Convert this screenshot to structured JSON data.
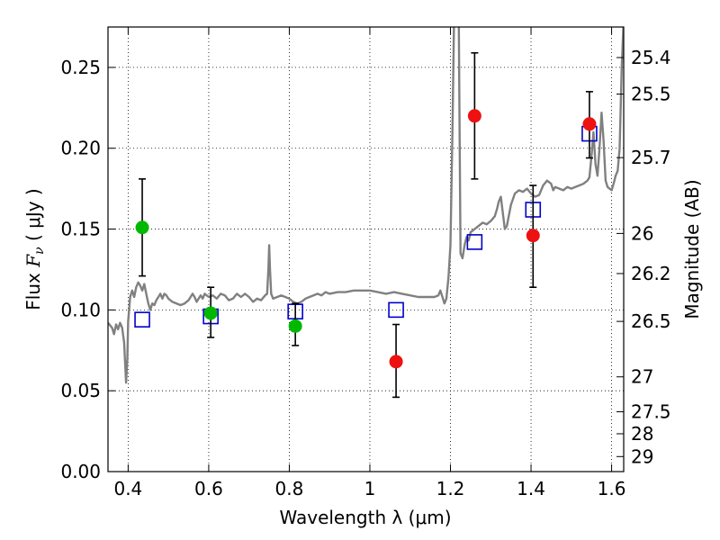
{
  "chart_data": {
    "type": "scatter",
    "title": "",
    "xlabel": "Wavelength  λ (μm)",
    "ylabel_prefix": "Flux  ",
    "ylabel_symbol": "F",
    "ylabel_subscript": "ν",
    "ylabel_suffix": "  ( μJy )",
    "y2label": "Magnitude (AB)",
    "xlim": [
      0.35,
      1.63
    ],
    "ylim": [
      0.0,
      0.275
    ],
    "grid": true,
    "grid_style": "dotted",
    "xticks": [
      0.4,
      0.6,
      0.8,
      1.0,
      1.2,
      1.4,
      1.6
    ],
    "xtick_labels": [
      "0.4",
      "0.6",
      "0.8",
      "1",
      "1.2",
      "1.4",
      "1.6"
    ],
    "yticks": [
      0.0,
      0.05,
      0.1,
      0.15,
      0.2,
      0.25
    ],
    "ytick_labels": [
      "0.00",
      "0.05",
      "0.10",
      "0.15",
      "0.20",
      "0.25"
    ],
    "y2ticks": [
      {
        "flux": 0.2561,
        "label": "25.4"
      },
      {
        "flux": 0.2335,
        "label": "25.5"
      },
      {
        "flux": 0.1942,
        "label": "25.7"
      },
      {
        "flux": 0.1473,
        "label": "26"
      },
      {
        "flux": 0.1225,
        "label": "26.2"
      },
      {
        "flux": 0.0929,
        "label": "26.5"
      },
      {
        "flux": 0.0586,
        "label": "27"
      },
      {
        "flux": 0.037,
        "label": "27.5"
      },
      {
        "flux": 0.0234,
        "label": "28"
      },
      {
        "flux": 0.0093,
        "label": "29"
      }
    ],
    "series": [
      {
        "kind": "model_sed_line",
        "color": "#808080",
        "points": [
          [
            0.35,
            0.092
          ],
          [
            0.36,
            0.089
          ],
          [
            0.365,
            0.085
          ],
          [
            0.37,
            0.091
          ],
          [
            0.375,
            0.088
          ],
          [
            0.38,
            0.092
          ],
          [
            0.385,
            0.089
          ],
          [
            0.39,
            0.08
          ],
          [
            0.395,
            0.055
          ],
          [
            0.398,
            0.07
          ],
          [
            0.4,
            0.093
          ],
          [
            0.405,
            0.108
          ],
          [
            0.41,
            0.112
          ],
          [
            0.415,
            0.108
          ],
          [
            0.42,
            0.114
          ],
          [
            0.425,
            0.117
          ],
          [
            0.43,
            0.115
          ],
          [
            0.435,
            0.112
          ],
          [
            0.44,
            0.116
          ],
          [
            0.445,
            0.11
          ],
          [
            0.45,
            0.104
          ],
          [
            0.455,
            0.1
          ],
          [
            0.46,
            0.104
          ],
          [
            0.465,
            0.103
          ],
          [
            0.47,
            0.106
          ],
          [
            0.475,
            0.108
          ],
          [
            0.48,
            0.11
          ],
          [
            0.485,
            0.107
          ],
          [
            0.49,
            0.11
          ],
          [
            0.495,
            0.109
          ],
          [
            0.5,
            0.107
          ],
          [
            0.51,
            0.105
          ],
          [
            0.52,
            0.104
          ],
          [
            0.53,
            0.103
          ],
          [
            0.54,
            0.104
          ],
          [
            0.55,
            0.106
          ],
          [
            0.56,
            0.11
          ],
          [
            0.565,
            0.108
          ],
          [
            0.57,
            0.105
          ],
          [
            0.575,
            0.107
          ],
          [
            0.58,
            0.109
          ],
          [
            0.585,
            0.107
          ],
          [
            0.59,
            0.11
          ],
          [
            0.6,
            0.108
          ],
          [
            0.61,
            0.109
          ],
          [
            0.62,
            0.107
          ],
          [
            0.63,
            0.11
          ],
          [
            0.64,
            0.109
          ],
          [
            0.65,
            0.106
          ],
          [
            0.66,
            0.107
          ],
          [
            0.67,
            0.11
          ],
          [
            0.68,
            0.108
          ],
          [
            0.69,
            0.11
          ],
          [
            0.7,
            0.108
          ],
          [
            0.71,
            0.105
          ],
          [
            0.72,
            0.107
          ],
          [
            0.73,
            0.106
          ],
          [
            0.74,
            0.109
          ],
          [
            0.745,
            0.11
          ],
          [
            0.748,
            0.125
          ],
          [
            0.75,
            0.14
          ],
          [
            0.752,
            0.125
          ],
          [
            0.755,
            0.11
          ],
          [
            0.76,
            0.107
          ],
          [
            0.77,
            0.108
          ],
          [
            0.78,
            0.109
          ],
          [
            0.79,
            0.108
          ],
          [
            0.8,
            0.107
          ],
          [
            0.81,
            0.105
          ],
          [
            0.82,
            0.104
          ],
          [
            0.83,
            0.105
          ],
          [
            0.84,
            0.107
          ],
          [
            0.85,
            0.108
          ],
          [
            0.86,
            0.109
          ],
          [
            0.87,
            0.11
          ],
          [
            0.88,
            0.109
          ],
          [
            0.89,
            0.111
          ],
          [
            0.9,
            0.11
          ],
          [
            0.92,
            0.111
          ],
          [
            0.94,
            0.111
          ],
          [
            0.96,
            0.112
          ],
          [
            0.98,
            0.112
          ],
          [
            1.0,
            0.112
          ],
          [
            1.02,
            0.111
          ],
          [
            1.04,
            0.11
          ],
          [
            1.06,
            0.111
          ],
          [
            1.08,
            0.11
          ],
          [
            1.1,
            0.109
          ],
          [
            1.12,
            0.108
          ],
          [
            1.14,
            0.108
          ],
          [
            1.16,
            0.108
          ],
          [
            1.17,
            0.109
          ],
          [
            1.175,
            0.112
          ],
          [
            1.18,
            0.108
          ],
          [
            1.185,
            0.104
          ],
          [
            1.19,
            0.107
          ],
          [
            1.195,
            0.12
          ],
          [
            1.2,
            0.14
          ],
          [
            1.205,
            0.21
          ],
          [
            1.21,
            0.3
          ],
          [
            1.22,
            0.3
          ],
          [
            1.222,
            0.23
          ],
          [
            1.225,
            0.135
          ],
          [
            1.23,
            0.132
          ],
          [
            1.235,
            0.14
          ],
          [
            1.24,
            0.145
          ],
          [
            1.245,
            0.143
          ],
          [
            1.25,
            0.148
          ],
          [
            1.26,
            0.15
          ],
          [
            1.27,
            0.152
          ],
          [
            1.28,
            0.154
          ],
          [
            1.29,
            0.153
          ],
          [
            1.3,
            0.155
          ],
          [
            1.31,
            0.158
          ],
          [
            1.315,
            0.162
          ],
          [
            1.32,
            0.167
          ],
          [
            1.325,
            0.17
          ],
          [
            1.33,
            0.16
          ],
          [
            1.335,
            0.15
          ],
          [
            1.34,
            0.152
          ],
          [
            1.35,
            0.165
          ],
          [
            1.36,
            0.172
          ],
          [
            1.37,
            0.174
          ],
          [
            1.38,
            0.173
          ],
          [
            1.39,
            0.175
          ],
          [
            1.4,
            0.172
          ],
          [
            1.41,
            0.17
          ],
          [
            1.42,
            0.171
          ],
          [
            1.43,
            0.177
          ],
          [
            1.44,
            0.18
          ],
          [
            1.45,
            0.178
          ],
          [
            1.455,
            0.174
          ],
          [
            1.46,
            0.176
          ],
          [
            1.47,
            0.175
          ],
          [
            1.48,
            0.174
          ],
          [
            1.49,
            0.176
          ],
          [
            1.5,
            0.175
          ],
          [
            1.51,
            0.176
          ],
          [
            1.52,
            0.177
          ],
          [
            1.53,
            0.178
          ],
          [
            1.54,
            0.18
          ],
          [
            1.545,
            0.182
          ],
          [
            1.55,
            0.195
          ],
          [
            1.555,
            0.21
          ],
          [
            1.56,
            0.19
          ],
          [
            1.565,
            0.183
          ],
          [
            1.57,
            0.2
          ],
          [
            1.575,
            0.222
          ],
          [
            1.58,
            0.205
          ],
          [
            1.585,
            0.18
          ],
          [
            1.59,
            0.176
          ],
          [
            1.595,
            0.175
          ],
          [
            1.6,
            0.174
          ],
          [
            1.605,
            0.178
          ],
          [
            1.61,
            0.183
          ],
          [
            1.615,
            0.186
          ],
          [
            1.62,
            0.2
          ],
          [
            1.625,
            0.25
          ],
          [
            1.63,
            0.28
          ]
        ]
      },
      {
        "kind": "model_photometry",
        "marker": "open-square",
        "color": "#0000cc",
        "points": [
          [
            0.435,
            0.094
          ],
          [
            0.605,
            0.096
          ],
          [
            0.815,
            0.099
          ],
          [
            1.065,
            0.1
          ],
          [
            1.26,
            0.142
          ],
          [
            1.405,
            0.162
          ],
          [
            1.545,
            0.209
          ]
        ]
      },
      {
        "kind": "observed_optical",
        "marker": "circle",
        "color": "#00b800",
        "points": [
          {
            "x": 0.435,
            "y": 0.151,
            "ylow": 0.121,
            "yhigh": 0.181
          },
          {
            "x": 0.605,
            "y": 0.098,
            "ylow": 0.083,
            "yhigh": 0.114
          },
          {
            "x": 0.815,
            "y": 0.09,
            "ylow": 0.078,
            "yhigh": 0.104
          }
        ]
      },
      {
        "kind": "observed_nir",
        "marker": "circle",
        "color": "#ee1111",
        "points": [
          {
            "x": 1.065,
            "y": 0.068,
            "ylow": 0.046,
            "yhigh": 0.091
          },
          {
            "x": 1.26,
            "y": 0.22,
            "ylow": 0.181,
            "yhigh": 0.259
          },
          {
            "x": 1.405,
            "y": 0.146,
            "ylow": 0.114,
            "yhigh": 0.177
          },
          {
            "x": 1.545,
            "y": 0.215,
            "ylow": 0.194,
            "yhigh": 0.235
          }
        ]
      }
    ]
  }
}
